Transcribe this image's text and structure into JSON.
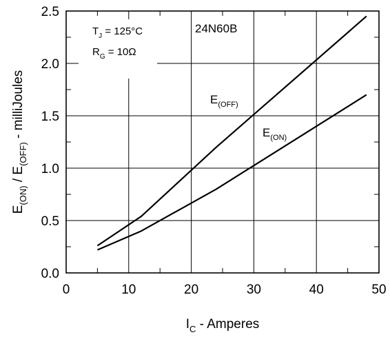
{
  "chart_data": {
    "type": "line",
    "title": "",
    "part_number": "24N60B",
    "xlabel": {
      "main": "I",
      "sub": "C",
      "rest": " - Amperes"
    },
    "ylabel": {
      "parts": [
        {
          "text": "E",
          "sub": false
        },
        {
          "text": "(ON)",
          "sub": true
        },
        {
          "text": " / E",
          "sub": false
        },
        {
          "text": "(OFF)",
          "sub": true
        },
        {
          "text": " - milliJoules",
          "sub": false
        }
      ]
    },
    "xlim": [
      0,
      50
    ],
    "ylim": [
      0,
      2.5
    ],
    "x_ticks": [
      0,
      10,
      20,
      30,
      40,
      50
    ],
    "y_ticks": [
      0.0,
      0.5,
      1.0,
      1.5,
      2.0,
      2.5
    ],
    "x_tick_labels": [
      "0",
      "10",
      "20",
      "30",
      "40",
      "50"
    ],
    "y_tick_labels": [
      "0.0",
      "0.5",
      "1.0",
      "1.5",
      "2.0",
      "2.5"
    ],
    "grid": true,
    "conditions": [
      {
        "main": "T",
        "sub": "J",
        "rest": " = 125°C"
      },
      {
        "main": "R",
        "sub": "G",
        "rest": " = 10Ω"
      }
    ],
    "series": [
      {
        "name": "E(OFF)",
        "label": {
          "main": "E",
          "sub": "(OFF)"
        },
        "x": [
          5,
          12,
          24,
          48
        ],
        "y": [
          0.26,
          0.54,
          1.2,
          2.45
        ]
      },
      {
        "name": "E(ON)",
        "label": {
          "main": "E",
          "sub": "(ON)"
        },
        "x": [
          5,
          12,
          24,
          48
        ],
        "y": [
          0.22,
          0.4,
          0.8,
          1.7
        ]
      }
    ],
    "colors": {
      "line": "#000000",
      "grid": "#000000",
      "background": "#ffffff"
    }
  }
}
